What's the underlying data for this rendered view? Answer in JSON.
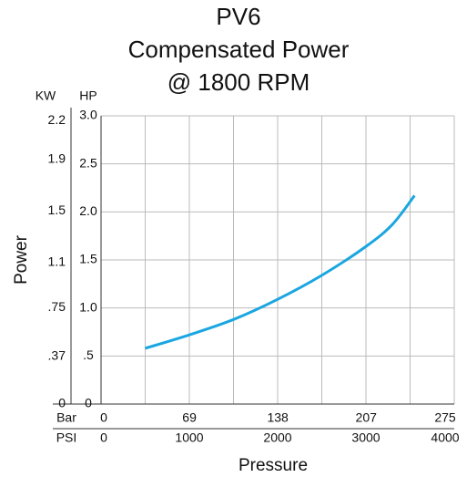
{
  "chart_data": {
    "type": "line",
    "title": [
      "PV6",
      "Compensated Power",
      "@ 1800 RPM"
    ],
    "ylabel": "Power",
    "xlabel": "Pressure",
    "ylabel_unit": "HP",
    "y2label": "KW",
    "xlabel_unit": "PSI",
    "x2label": "Bar",
    "x": [
      500,
      1000,
      1500,
      2000,
      2500,
      3000,
      3300,
      3550
    ],
    "values": [
      0.58,
      0.72,
      0.88,
      1.09,
      1.34,
      1.64,
      1.87,
      2.17
    ],
    "color": "#1aa6e0",
    "xlim": [
      0,
      4000
    ],
    "xticks": [
      0,
      1000,
      2000,
      3000,
      4000
    ],
    "xminorticks": [
      500,
      1500,
      2500,
      3500
    ],
    "x2lim": [
      0,
      275.8
    ],
    "x2ticks": [
      0,
      69,
      138,
      207,
      275
    ],
    "ylim": [
      0,
      3
    ],
    "yticks": [
      0,
      {
        "value": 0.5,
        "label": ".5"
      },
      {
        "value": 1,
        "label": "1.0"
      },
      1.5,
      {
        "value": 2,
        "label": "2.0"
      },
      2.5,
      {
        "value": 3,
        "label": "3.0"
      }
    ],
    "y2lim": [
      0,
      2.237
    ],
    "y2ticks": [
      0,
      {
        "value": 0.37,
        "label": ".37"
      },
      {
        "value": 0.75,
        "label": ".75"
      },
      1.1,
      1.5,
      1.9,
      2.2
    ],
    "grid": true
  }
}
